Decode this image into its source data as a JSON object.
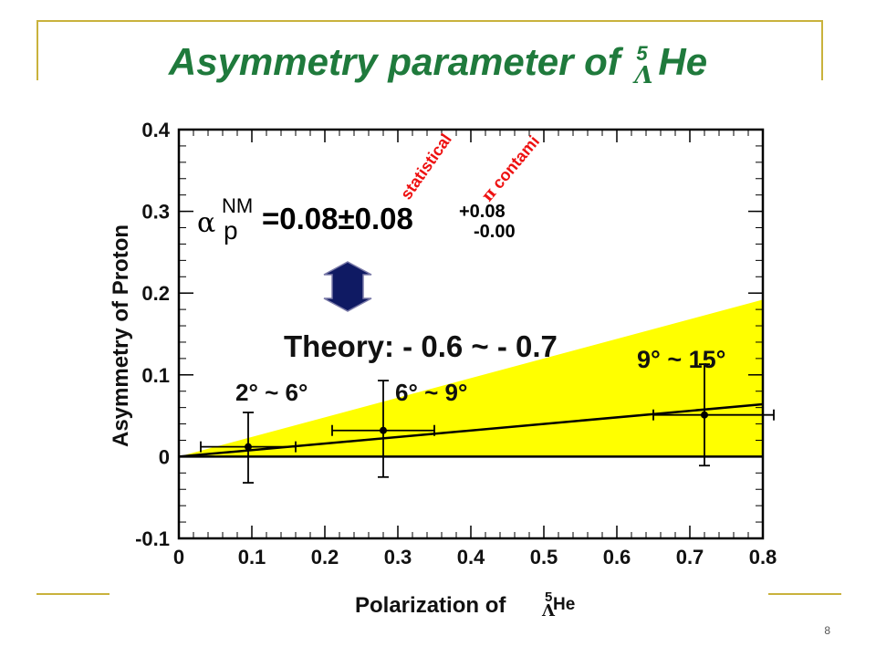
{
  "slide": {
    "title_text": "Asymmetry parameter of ",
    "title_mass": "5",
    "title_lambda": "Λ",
    "title_element": "He",
    "page_number": "8"
  },
  "annotations": {
    "alpha_symbol": "α",
    "alpha_sub": "p",
    "alpha_sup": "NM",
    "alpha_value": "=0.08±0.08",
    "sys_plus": "+0.08",
    "sys_minus": "-0.00",
    "statistical_label": "statistical",
    "pi_symbol": "π",
    "contami_label": " contami",
    "theory_label": "Theory: - 0.6 ~ - 0.7",
    "angle_1": "2° ~ 6°",
    "angle_2": "6° ~ 9°",
    "angle_3": "9° ~ 15°"
  },
  "colors": {
    "title": "#1f7a3c",
    "band": "#ffff00",
    "annotation_red": "#ee1111",
    "arrow_fill": "#0f1a63",
    "frame_gold": "#c9b23c"
  },
  "chart_data": {
    "type": "scatter",
    "xlabel": "Polarization of",
    "xlabel_mass": "5",
    "xlabel_lambda": "Λ",
    "xlabel_element": "He",
    "ylabel": "Asymmetry of Proton",
    "xlim": [
      0,
      0.8
    ],
    "ylim": [
      -0.1,
      0.4
    ],
    "x_ticks": [
      0,
      0.1,
      0.2,
      0.3,
      0.4,
      0.5,
      0.6,
      0.7,
      0.8
    ],
    "x_tick_labels": [
      "0",
      "0.1",
      "0.2",
      "0.3",
      "0.4",
      "0.5",
      "0.6",
      "0.7",
      "0.8"
    ],
    "y_ticks": [
      -0.1,
      0,
      0.1,
      0.2,
      0.3,
      0.4
    ],
    "y_tick_labels": [
      "-0.1",
      "0",
      "0.1",
      "0.2",
      "0.3",
      "0.4"
    ],
    "points": [
      {
        "x": 0.095,
        "y": 0.012,
        "xerr_low": 0.03,
        "xerr_high": 0.16,
        "yerr_low": -0.032,
        "yerr_high": 0.054
      },
      {
        "x": 0.28,
        "y": 0.032,
        "xerr_low": 0.21,
        "xerr_high": 0.35,
        "yerr_low": -0.025,
        "yerr_high": 0.093
      },
      {
        "x": 0.72,
        "y": 0.051,
        "xerr_low": 0.65,
        "xerr_high": 0.815,
        "yerr_low": -0.011,
        "yerr_high": 0.113
      }
    ],
    "fit_line": {
      "x": [
        0,
        0.8
      ],
      "y": [
        0,
        0.064
      ]
    },
    "theory_band": {
      "x": [
        0,
        0.8
      ],
      "y_low": [
        0,
        0
      ],
      "y_high": [
        0,
        0.192
      ]
    },
    "zero_line": true,
    "grid": false
  }
}
